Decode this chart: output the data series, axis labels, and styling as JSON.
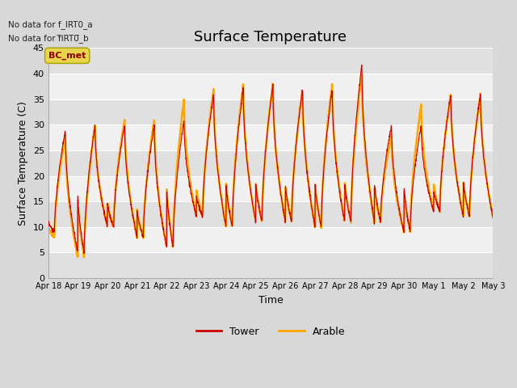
{
  "title": "Surface Temperature",
  "xlabel": "Time",
  "ylabel": "Surface Temperature (C)",
  "ylim": [
    0,
    45
  ],
  "tick_labels": [
    "Apr 18",
    "Apr 19",
    "Apr 20",
    "Apr 21",
    "Apr 22",
    "Apr 23",
    "Apr 24",
    "Apr 25",
    "Apr 26",
    "Apr 27",
    "Apr 28",
    "Apr 29",
    "Apr 30",
    "May 1",
    "May 2",
    "May 3"
  ],
  "no_data_text_1": "No data for f_IRT0_a",
  "no_data_text_2": "No data for f̅IRT0̅_b",
  "bc_met_label": "BC_met",
  "bc_met_bg_color": "#e8d44d",
  "bc_met_text_color": "#8b0000",
  "tower_color": "#cc0000",
  "arable_color": "#ffa500",
  "fig_bg_color": "#d8d8d8",
  "plot_bg_light": "#f0f0f0",
  "plot_bg_dark": "#e0e0e0",
  "grid_color": "#ffffff",
  "title_fontsize": 13,
  "label_fontsize": 9,
  "tick_fontsize": 8,
  "yticks": [
    0,
    5,
    10,
    15,
    20,
    25,
    30,
    35,
    40,
    45
  ],
  "daily_peaks_tower": [
    29,
    30,
    30,
    30,
    31,
    36,
    37,
    38,
    37,
    37,
    42,
    30,
    30,
    36,
    36
  ],
  "daily_troughs_tower": [
    9,
    5,
    10,
    8,
    6,
    12,
    10,
    11,
    11,
    10,
    11,
    11,
    9,
    13,
    12
  ],
  "daily_peaks_arable": [
    28,
    30,
    31,
    31,
    35,
    37,
    38,
    38,
    37,
    38,
    40,
    28,
    34,
    36,
    36
  ],
  "daily_troughs_arable": [
    8,
    4,
    10,
    8,
    6,
    12,
    10,
    11,
    11,
    10,
    11,
    11,
    9,
    13,
    12
  ],
  "tower_lw": 0.8,
  "arable_lw": 1.8
}
